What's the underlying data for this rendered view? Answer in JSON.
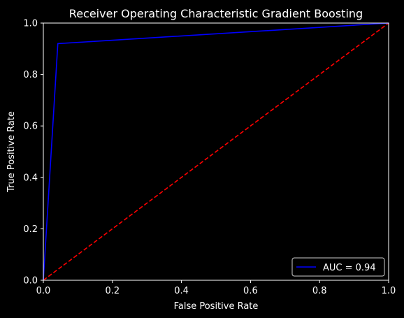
{
  "chart_data": {
    "type": "line",
    "title": "Receiver Operating Characteristic Gradient Boosting",
    "xlabel": "False Positive Rate",
    "ylabel": "True Positive Rate",
    "xlim": [
      0,
      1
    ],
    "ylim": [
      0,
      1
    ],
    "grid": false,
    "legend_position": "lower-right",
    "x_ticks": [
      "0.0",
      "0.2",
      "0.4",
      "0.6",
      "0.8",
      "1.0"
    ],
    "y_ticks": [
      "0.0",
      "0.2",
      "0.4",
      "0.6",
      "0.8",
      "1.0"
    ],
    "series": [
      {
        "name": "AUC = 0.94",
        "color": "#0000ff",
        "style": "solid",
        "x": [
          0.0,
          0.042,
          1.0
        ],
        "y": [
          0.0,
          0.92,
          1.0
        ]
      },
      {
        "color": "#ff0000",
        "style": "dashed",
        "x": [
          0.0,
          1.0
        ],
        "y": [
          0.0,
          1.0
        ]
      }
    ],
    "colors": {
      "background": "#000000",
      "axes": "#ffffff",
      "text": "#ffffff"
    }
  }
}
